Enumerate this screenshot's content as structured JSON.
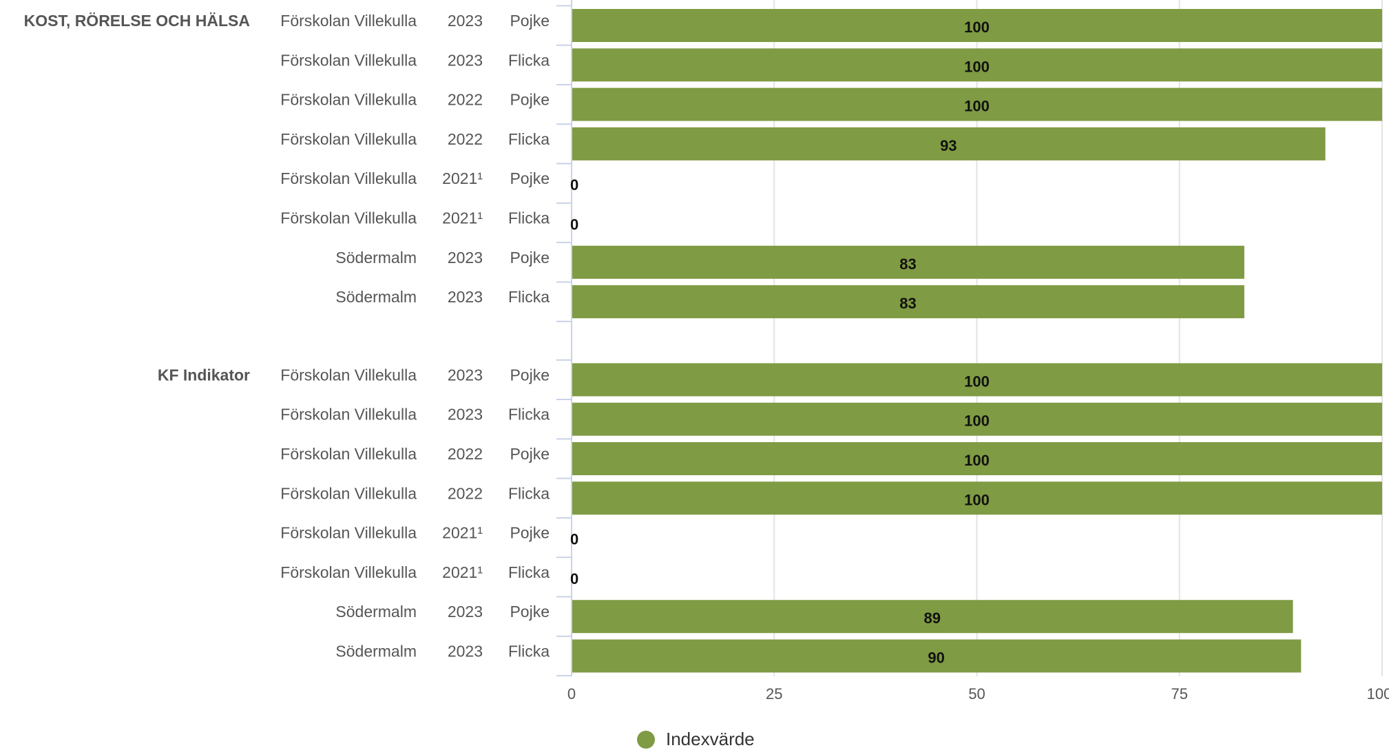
{
  "chart_data": {
    "type": "bar",
    "orientation": "horizontal",
    "title": "",
    "xlim": [
      0,
      100
    ],
    "x_ticks": [
      "0",
      "25",
      "50",
      "75",
      "100"
    ],
    "grid": true,
    "legend_position": "bottom-center",
    "series": [
      {
        "name": "Indexvärde",
        "color": "#7f9b43"
      }
    ],
    "groups": [
      {
        "label": "KOST, RÖRELSE OCH HÄLSA",
        "rows": [
          {
            "unit": "Förskolan Villekulla",
            "year": "2023",
            "gender": "Pojke",
            "value": 100
          },
          {
            "unit": "Förskolan Villekulla",
            "year": "2023",
            "gender": "Flicka",
            "value": 100
          },
          {
            "unit": "Förskolan Villekulla",
            "year": "2022",
            "gender": "Pojke",
            "value": 100
          },
          {
            "unit": "Förskolan Villekulla",
            "year": "2022",
            "gender": "Flicka",
            "value": 93
          },
          {
            "unit": "Förskolan Villekulla",
            "year": "2021¹",
            "gender": "Pojke",
            "value": 0
          },
          {
            "unit": "Förskolan Villekulla",
            "year": "2021¹",
            "gender": "Flicka",
            "value": 0
          },
          {
            "unit": "Södermalm",
            "year": "2023",
            "gender": "Pojke",
            "value": 83
          },
          {
            "unit": "Södermalm",
            "year": "2023",
            "gender": "Flicka",
            "value": 83
          }
        ]
      },
      {
        "label": "KF Indikator",
        "rows": [
          {
            "unit": "Förskolan Villekulla",
            "year": "2023",
            "gender": "Pojke",
            "value": 100
          },
          {
            "unit": "Förskolan Villekulla",
            "year": "2023",
            "gender": "Flicka",
            "value": 100
          },
          {
            "unit": "Förskolan Villekulla",
            "year": "2022",
            "gender": "Pojke",
            "value": 100
          },
          {
            "unit": "Förskolan Villekulla",
            "year": "2022",
            "gender": "Flicka",
            "value": 100
          },
          {
            "unit": "Förskolan Villekulla",
            "year": "2021¹",
            "gender": "Pojke",
            "value": 0
          },
          {
            "unit": "Förskolan Villekulla",
            "year": "2021¹",
            "gender": "Flicka",
            "value": 0
          },
          {
            "unit": "Södermalm",
            "year": "2023",
            "gender": "Pojke",
            "value": 89
          },
          {
            "unit": "Södermalm",
            "year": "2023",
            "gender": "Flicka",
            "value": 90
          }
        ]
      }
    ]
  }
}
